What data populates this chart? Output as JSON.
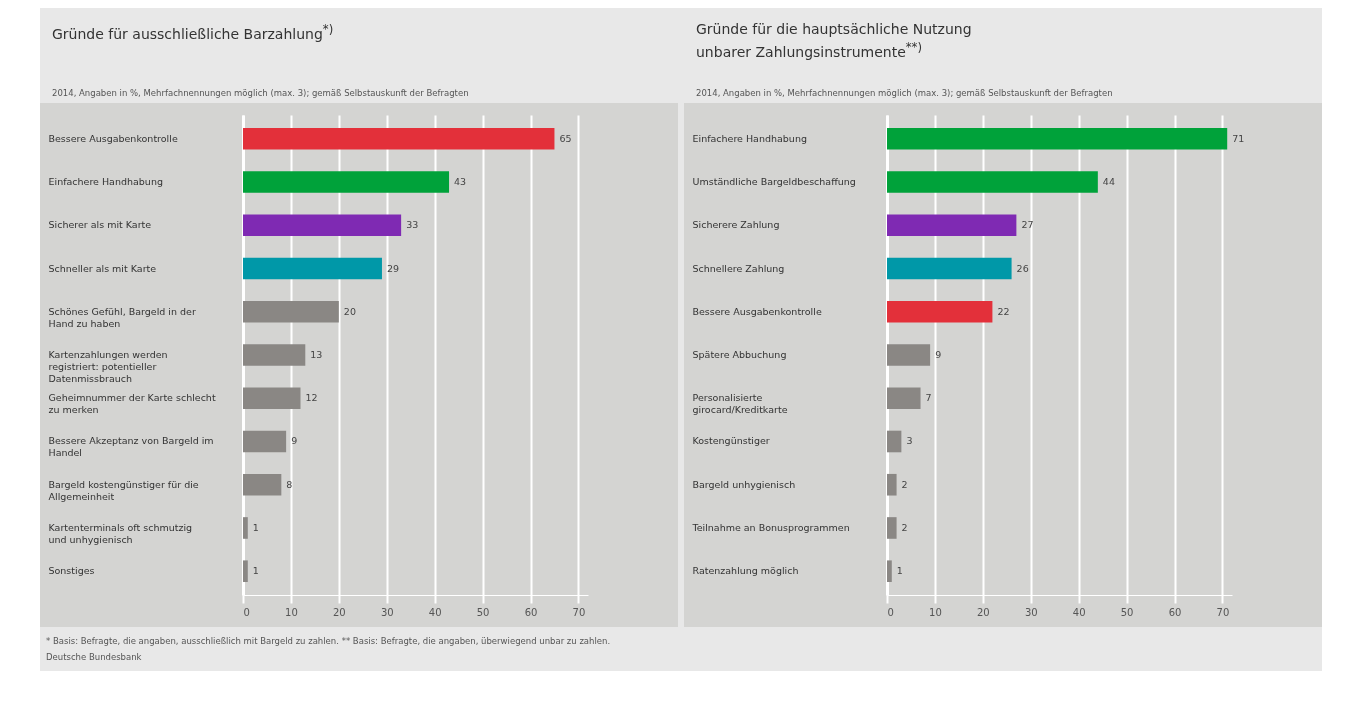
{
  "chart_data": [
    {
      "type": "bar",
      "orientation": "horizontal",
      "title": "Gründe für ausschließliche Barzahlung$^{*)}$",
      "subtitle": "2014, Angaben in %, Mehrfachnennungen möglich (max. 3); gemäß Selbstauskunft der Befragten",
      "categories": [
        "Bessere Ausgabenkontrolle",
        "Einfachere Handhabung",
        "Sicherer als mit Karte",
        "Schneller als mit Karte",
        "Schönes Gefühl, Bargeld in der Hand zu haben",
        "Kartenzahlungen werden registriert: potentieller Datenmissbrauch",
        "Geheimnummer der Karte schlecht zu merken",
        "Bessere Akzeptanz von Bargeld im Handel",
        "Bargeld kostengünstiger für die Allgemeinheit",
        "Kartenterminals oft schmutzig und unhygienisch",
        "Sonstiges"
      ],
      "values": [
        65,
        43,
        33,
        29,
        20,
        13,
        12,
        9,
        8,
        1,
        1
      ],
      "colors": [
        "#e3303a",
        "#00a23a",
        "#7f2ab3",
        "#0098a8",
        "#8a8784",
        "#8a8784",
        "#8a8784",
        "#8a8784",
        "#8a8784",
        "#8a8784",
        "#8a8784"
      ],
      "xlim": [
        0,
        72
      ],
      "xticks": [
        0,
        10,
        20,
        30,
        40,
        50,
        60,
        70
      ],
      "grid": "x",
      "data_labels": true,
      "annotations": [
        "* Basis: Befragte, die angaben, ausschließlich mit Bargeld zu zahlen. ** Basis: Befragte, die angaben, überwiegend unbar zu zahlen.",
        "Deutsche Bundesbank"
      ]
    },
    {
      "type": "bar",
      "orientation": "horizontal",
      "title": "Gründe für die hauptsächliche Nutzung unbarer Zahlungsinstrumente$^{**)}$",
      "subtitle": "2014, Angaben in %, Mehrfachnennungen möglich (max. 3); gemäß Selbstauskunft der Befragten",
      "categories": [
        "Einfachere Handhabung",
        "Umständliche Bargeldbeschaffung",
        "Sicherere Zahlung",
        "Schnellere Zahlung",
        "Bessere Ausgabenkontrolle",
        "Spätere Abbuchung",
        "Personalisierte girocard/Kreditkarte",
        "Kostengünstiger",
        "Bargeld unhygienisch",
        "Teilnahme an Bonusprogrammen",
        "Ratenzahlung möglich"
      ],
      "values": [
        71,
        44,
        27,
        26,
        22,
        9,
        7,
        3,
        2,
        2,
        1
      ],
      "colors": [
        "#00a23a",
        "#00a23a",
        "#7f2ab3",
        "#0098a8",
        "#e3303a",
        "#8a8784",
        "#8a8784",
        "#8a8784",
        "#8a8784",
        "#8a8784",
        "#8a8784"
      ],
      "xlim": [
        0,
        72
      ],
      "xticks": [
        0,
        10,
        20,
        30,
        40,
        50,
        60,
        70
      ],
      "grid": "x",
      "data_labels": true
    }
  ]
}
